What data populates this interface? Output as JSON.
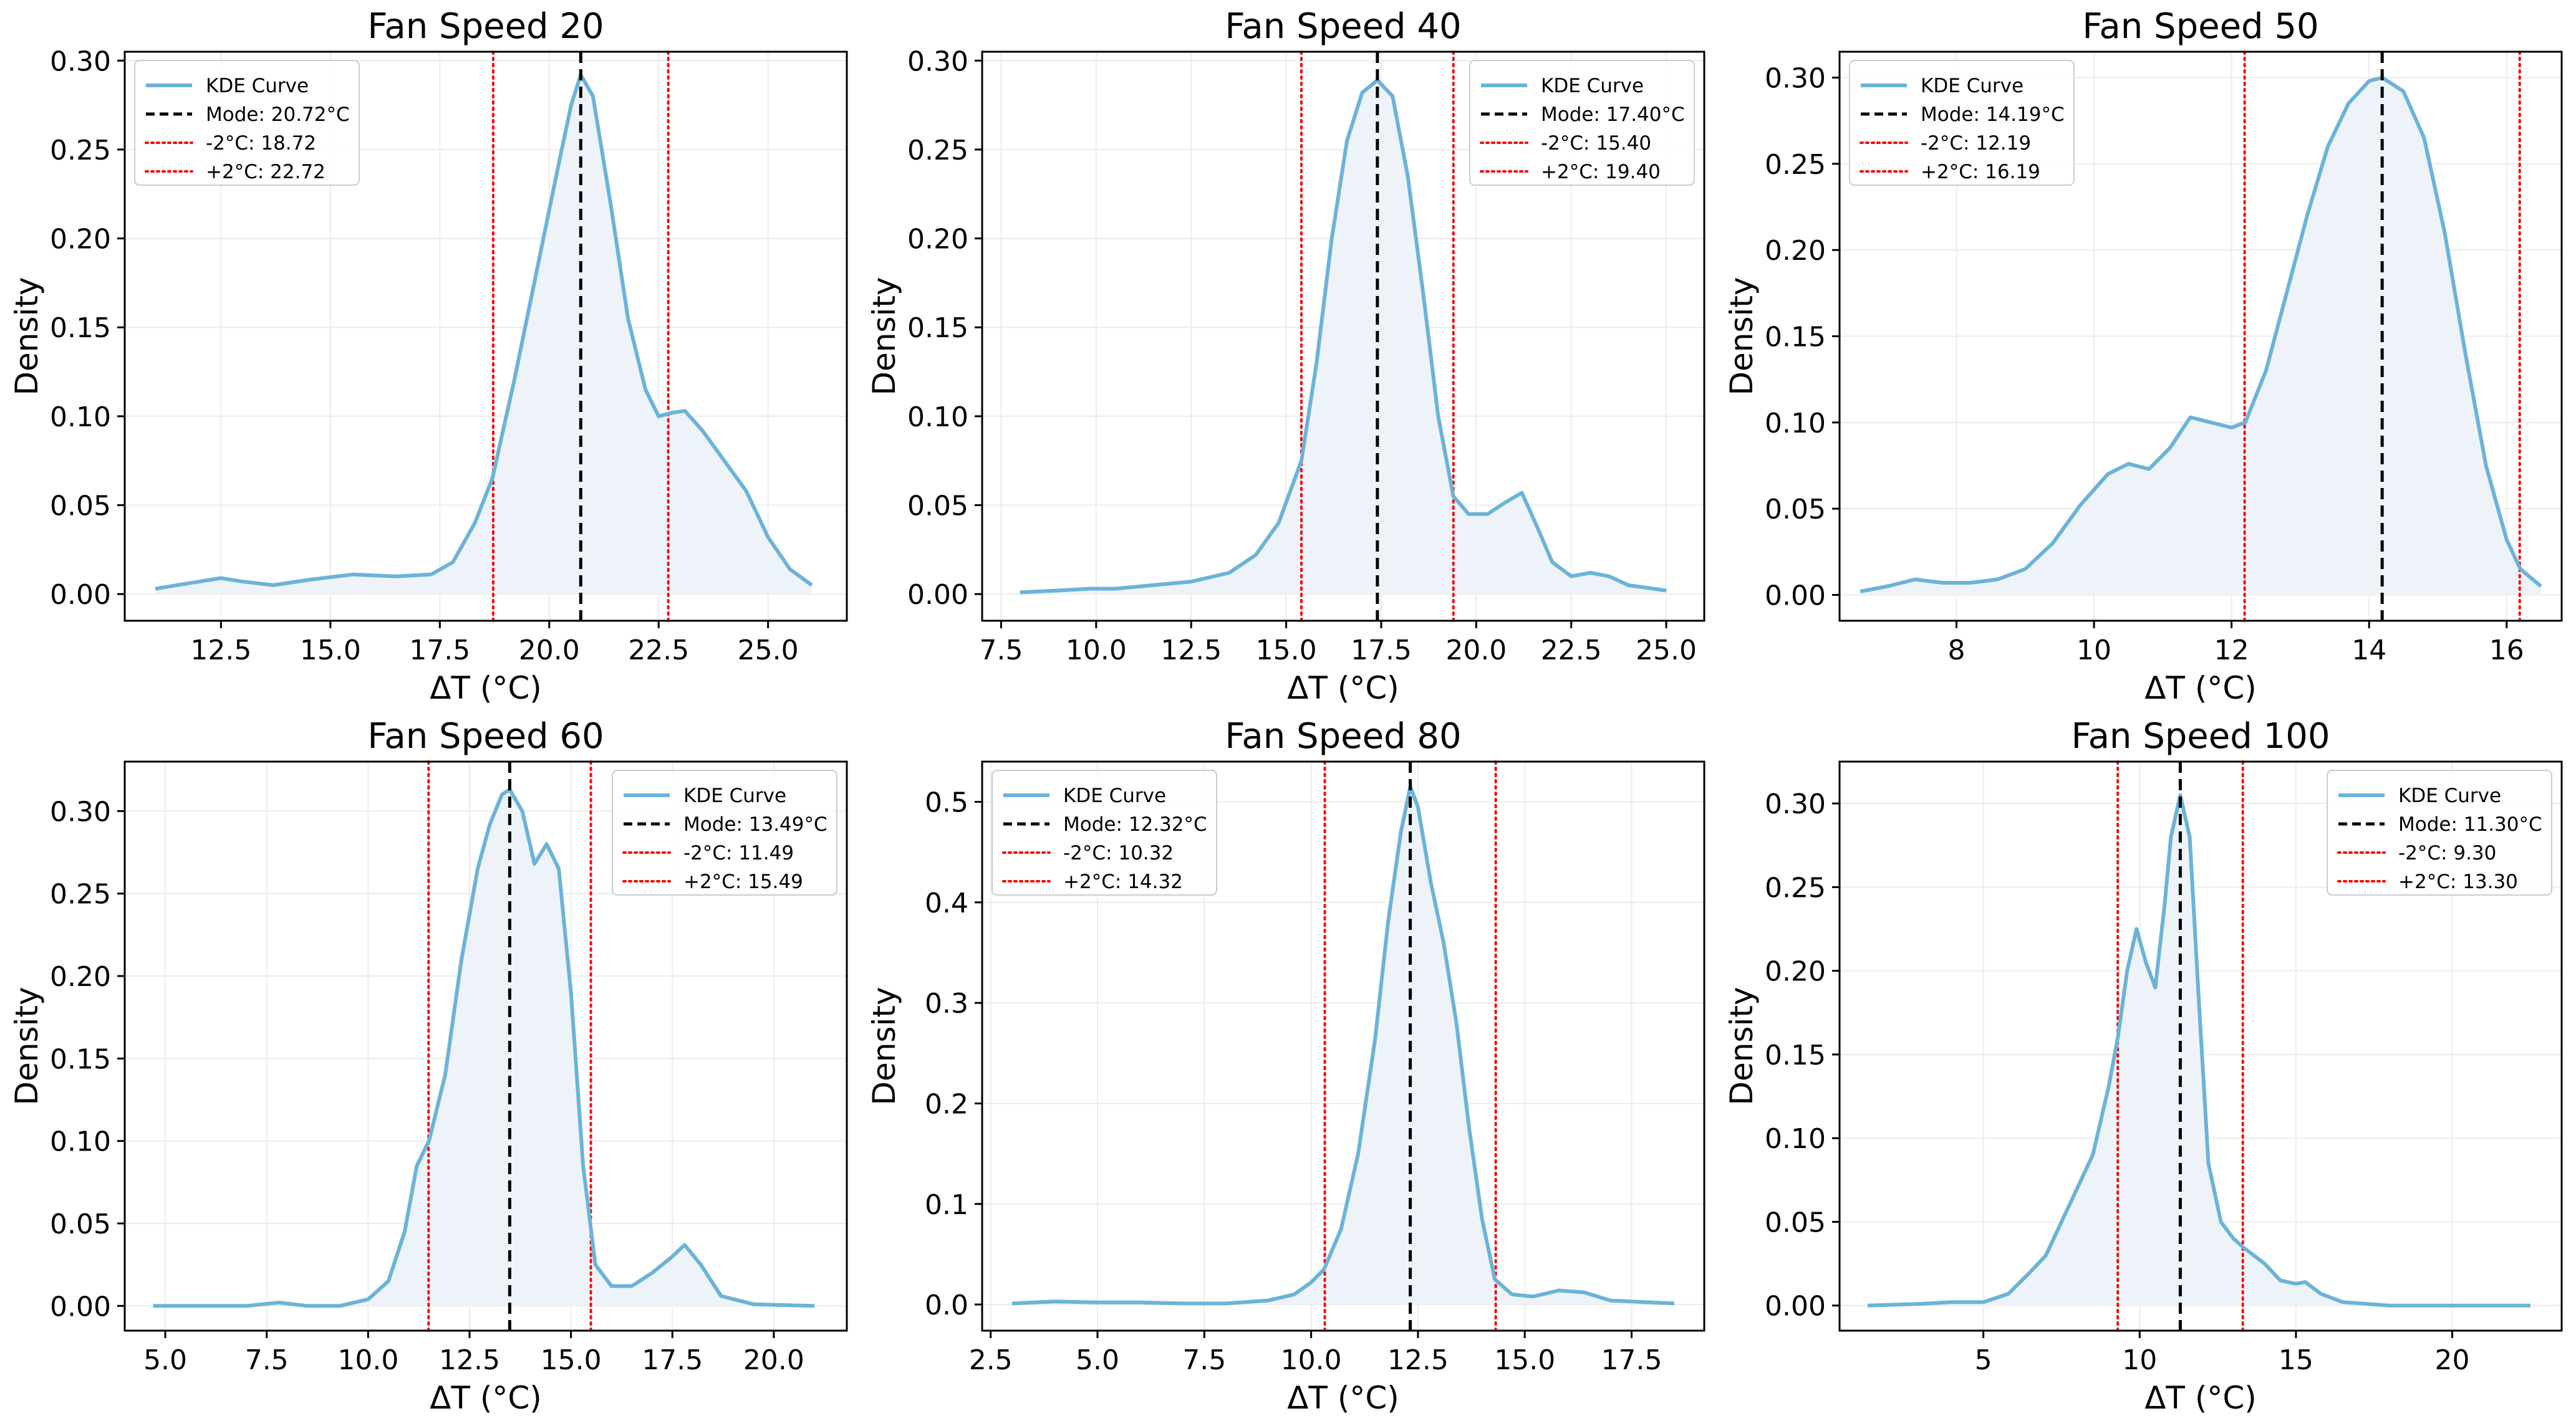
{
  "colors": {
    "kde": "#6bb3d9",
    "fill": "#eef3f9",
    "mode": "#000000",
    "band": "#ff0000",
    "grid": "#ececec",
    "axis": "#000000"
  },
  "chart_data": [
    {
      "type": "line",
      "title": "Fan Speed 20",
      "xlabel": "ΔT (°C)",
      "ylabel": "Density",
      "xlim": [
        10.3,
        26.8
      ],
      "ylim": [
        -0.015,
        0.305
      ],
      "xticks": [
        12.5,
        15.0,
        17.5,
        20.0,
        22.5,
        25.0
      ],
      "xtick_labels": [
        "12.5",
        "15.0",
        "17.5",
        "20.0",
        "22.5",
        "25.0"
      ],
      "yticks": [
        0,
        0.05,
        0.1,
        0.15,
        0.2,
        0.25,
        0.3
      ],
      "ytick_labels": [
        "0.00",
        "0.05",
        "0.10",
        "0.15",
        "0.20",
        "0.25",
        "0.30"
      ],
      "legend_position": "top-left",
      "legend": [
        "KDE Curve",
        "Mode: 20.72°C",
        "-2°C: 18.72",
        "+2°C: 22.72"
      ],
      "mode": 20.72,
      "lower": 18.72,
      "upper": 22.72,
      "x": [
        11.0,
        12.0,
        12.5,
        13.0,
        13.7,
        14.5,
        15.5,
        16.5,
        17.3,
        17.8,
        18.3,
        18.7,
        19.2,
        19.7,
        20.2,
        20.5,
        20.72,
        21.0,
        21.4,
        21.8,
        22.2,
        22.5,
        22.8,
        23.1,
        23.5,
        24.0,
        24.5,
        25.0,
        25.5,
        26.0
      ],
      "y": [
        0.003,
        0.007,
        0.009,
        0.007,
        0.005,
        0.008,
        0.011,
        0.01,
        0.011,
        0.018,
        0.04,
        0.065,
        0.12,
        0.18,
        0.24,
        0.275,
        0.292,
        0.28,
        0.22,
        0.155,
        0.115,
        0.1,
        0.102,
        0.103,
        0.092,
        0.075,
        0.058,
        0.032,
        0.014,
        0.005
      ]
    },
    {
      "type": "line",
      "title": "Fan Speed 40",
      "xlabel": "ΔT (°C)",
      "ylabel": "Density",
      "xlim": [
        7.0,
        26.0
      ],
      "ylim": [
        -0.015,
        0.305
      ],
      "xticks": [
        7.5,
        10.0,
        12.5,
        15.0,
        17.5,
        20.0,
        22.5,
        25.0
      ],
      "xtick_labels": [
        "7.5",
        "10.0",
        "12.5",
        "15.0",
        "17.5",
        "20.0",
        "22.5",
        "25.0"
      ],
      "yticks": [
        0,
        0.05,
        0.1,
        0.15,
        0.2,
        0.25,
        0.3
      ],
      "ytick_labels": [
        "0.00",
        "0.05",
        "0.10",
        "0.15",
        "0.20",
        "0.25",
        "0.30"
      ],
      "legend_position": "top-right",
      "legend": [
        "KDE Curve",
        "Mode: 17.40°C",
        "-2°C: 15.40",
        "+2°C: 19.40"
      ],
      "mode": 17.4,
      "lower": 15.4,
      "upper": 19.4,
      "x": [
        8.0,
        9.0,
        9.8,
        10.5,
        11.5,
        12.5,
        13.5,
        14.2,
        14.8,
        15.4,
        15.8,
        16.2,
        16.6,
        17.0,
        17.4,
        17.8,
        18.2,
        18.6,
        19.0,
        19.4,
        19.8,
        20.3,
        20.8,
        21.2,
        21.6,
        22.0,
        22.5,
        23.0,
        23.5,
        24.0,
        25.0
      ],
      "y": [
        0.001,
        0.002,
        0.003,
        0.003,
        0.005,
        0.007,
        0.012,
        0.022,
        0.04,
        0.075,
        0.13,
        0.2,
        0.255,
        0.282,
        0.289,
        0.28,
        0.235,
        0.17,
        0.1,
        0.055,
        0.045,
        0.045,
        0.052,
        0.057,
        0.038,
        0.018,
        0.01,
        0.012,
        0.01,
        0.005,
        0.002
      ]
    },
    {
      "type": "line",
      "title": "Fan Speed 50",
      "xlabel": "ΔT (°C)",
      "ylabel": "Density",
      "xlim": [
        6.3,
        16.8
      ],
      "ylim": [
        -0.015,
        0.315
      ],
      "xticks": [
        8,
        10,
        12,
        14,
        16
      ],
      "xtick_labels": [
        "8",
        "10",
        "12",
        "14",
        "16"
      ],
      "yticks": [
        0,
        0.05,
        0.1,
        0.15,
        0.2,
        0.25,
        0.3
      ],
      "ytick_labels": [
        "0.00",
        "0.05",
        "0.10",
        "0.15",
        "0.20",
        "0.25",
        "0.30"
      ],
      "legend_position": "top-left",
      "legend": [
        "KDE Curve",
        "Mode: 14.19°C",
        "-2°C: 12.19",
        "+2°C: 16.19"
      ],
      "mode": 14.19,
      "lower": 12.19,
      "upper": 16.19,
      "x": [
        6.6,
        7.0,
        7.4,
        7.8,
        8.2,
        8.6,
        9.0,
        9.4,
        9.8,
        10.2,
        10.5,
        10.8,
        11.1,
        11.4,
        11.7,
        12.0,
        12.2,
        12.5,
        12.8,
        13.1,
        13.4,
        13.7,
        14.0,
        14.19,
        14.5,
        14.8,
        15.1,
        15.4,
        15.7,
        16.0,
        16.2,
        16.5
      ],
      "y": [
        0.002,
        0.005,
        0.009,
        0.007,
        0.007,
        0.009,
        0.015,
        0.03,
        0.052,
        0.07,
        0.076,
        0.073,
        0.085,
        0.103,
        0.1,
        0.097,
        0.1,
        0.13,
        0.175,
        0.22,
        0.26,
        0.285,
        0.298,
        0.3,
        0.292,
        0.265,
        0.21,
        0.14,
        0.075,
        0.032,
        0.015,
        0.005
      ]
    },
    {
      "type": "line",
      "title": "Fan Speed 60",
      "xlabel": "ΔT (°C)",
      "ylabel": "Density",
      "xlim": [
        4.0,
        21.8
      ],
      "ylim": [
        -0.015,
        0.33
      ],
      "xticks": [
        5.0,
        7.5,
        10.0,
        12.5,
        15.0,
        17.5,
        20.0
      ],
      "xtick_labels": [
        "5.0",
        "7.5",
        "10.0",
        "12.5",
        "15.0",
        "17.5",
        "20.0"
      ],
      "yticks": [
        0,
        0.05,
        0.1,
        0.15,
        0.2,
        0.25,
        0.3
      ],
      "ytick_labels": [
        "0.00",
        "0.05",
        "0.10",
        "0.15",
        "0.20",
        "0.25",
        "0.30"
      ],
      "legend_position": "top-right",
      "legend": [
        "KDE Curve",
        "Mode: 13.49°C",
        "-2°C: 11.49",
        "+2°C: 15.49"
      ],
      "mode": 13.49,
      "lower": 11.49,
      "upper": 15.49,
      "x": [
        4.7,
        6.0,
        7.0,
        7.8,
        8.5,
        9.3,
        10.0,
        10.5,
        10.9,
        11.2,
        11.5,
        11.9,
        12.3,
        12.7,
        13.0,
        13.3,
        13.49,
        13.8,
        14.1,
        14.4,
        14.7,
        15.0,
        15.3,
        15.6,
        16.0,
        16.5,
        17.0,
        17.5,
        17.8,
        18.2,
        18.7,
        19.5,
        21.0
      ],
      "y": [
        0.0,
        0.0,
        0.0,
        0.002,
        0.0,
        0.0,
        0.004,
        0.015,
        0.045,
        0.085,
        0.1,
        0.14,
        0.21,
        0.265,
        0.292,
        0.31,
        0.313,
        0.3,
        0.268,
        0.28,
        0.265,
        0.19,
        0.085,
        0.025,
        0.012,
        0.012,
        0.02,
        0.03,
        0.037,
        0.025,
        0.006,
        0.001,
        0.0
      ]
    },
    {
      "type": "line",
      "title": "Fan Speed 80",
      "xlabel": "ΔT (°C)",
      "ylabel": "Density",
      "xlim": [
        2.3,
        19.2
      ],
      "ylim": [
        -0.026,
        0.54
      ],
      "xticks": [
        2.5,
        5.0,
        7.5,
        10.0,
        12.5,
        15.0,
        17.5
      ],
      "xtick_labels": [
        "2.5",
        "5.0",
        "7.5",
        "10.0",
        "12.5",
        "15.0",
        "17.5"
      ],
      "yticks": [
        0,
        0.1,
        0.2,
        0.3,
        0.4,
        0.5
      ],
      "ytick_labels": [
        "0.0",
        "0.1",
        "0.2",
        "0.3",
        "0.4",
        "0.5"
      ],
      "legend_position": "top-left",
      "legend": [
        "KDE Curve",
        "Mode: 12.32°C",
        "-2°C: 10.32",
        "+2°C: 14.32"
      ],
      "mode": 12.32,
      "lower": 10.32,
      "upper": 14.32,
      "x": [
        3.0,
        4.0,
        5.0,
        6.0,
        7.0,
        8.0,
        9.0,
        9.6,
        10.0,
        10.3,
        10.7,
        11.1,
        11.5,
        11.8,
        12.1,
        12.32,
        12.5,
        12.8,
        13.1,
        13.4,
        13.7,
        14.0,
        14.3,
        14.7,
        15.2,
        15.8,
        16.4,
        17.0,
        18.5
      ],
      "y": [
        0.001,
        0.003,
        0.002,
        0.002,
        0.001,
        0.001,
        0.004,
        0.01,
        0.022,
        0.035,
        0.075,
        0.15,
        0.265,
        0.38,
        0.47,
        0.515,
        0.495,
        0.42,
        0.36,
        0.28,
        0.175,
        0.085,
        0.025,
        0.01,
        0.008,
        0.014,
        0.012,
        0.004,
        0.001
      ]
    },
    {
      "type": "line",
      "title": "Fan Speed 100",
      "xlabel": "ΔT (°C)",
      "ylabel": "Density",
      "xlim": [
        0.4,
        23.5
      ],
      "ylim": [
        -0.015,
        0.325
      ],
      "xticks": [
        5,
        10,
        15,
        20
      ],
      "xtick_labels": [
        "5",
        "10",
        "15",
        "20"
      ],
      "yticks": [
        0,
        0.05,
        0.1,
        0.15,
        0.2,
        0.25,
        0.3
      ],
      "ytick_labels": [
        "0.00",
        "0.05",
        "0.10",
        "0.15",
        "0.20",
        "0.25",
        "0.30"
      ],
      "legend_position": "top-right",
      "legend": [
        "KDE Curve",
        "Mode: 11.30°C",
        "-2°C: 9.30",
        "+2°C: 13.30"
      ],
      "mode": 11.3,
      "lower": 9.3,
      "upper": 13.3,
      "x": [
        1.3,
        3.0,
        4.0,
        5.0,
        5.8,
        6.5,
        7.0,
        7.5,
        8.0,
        8.5,
        9.0,
        9.3,
        9.6,
        9.9,
        10.2,
        10.5,
        10.8,
        11.0,
        11.3,
        11.6,
        11.9,
        12.2,
        12.6,
        13.0,
        13.3,
        14.0,
        14.5,
        15.0,
        15.3,
        15.8,
        16.5,
        18.0,
        22.5
      ],
      "y": [
        0.0,
        0.001,
        0.002,
        0.002,
        0.007,
        0.02,
        0.03,
        0.05,
        0.07,
        0.09,
        0.13,
        0.16,
        0.2,
        0.225,
        0.205,
        0.19,
        0.24,
        0.28,
        0.305,
        0.28,
        0.18,
        0.085,
        0.05,
        0.04,
        0.035,
        0.025,
        0.015,
        0.013,
        0.014,
        0.007,
        0.002,
        0.0,
        0.0
      ]
    }
  ]
}
